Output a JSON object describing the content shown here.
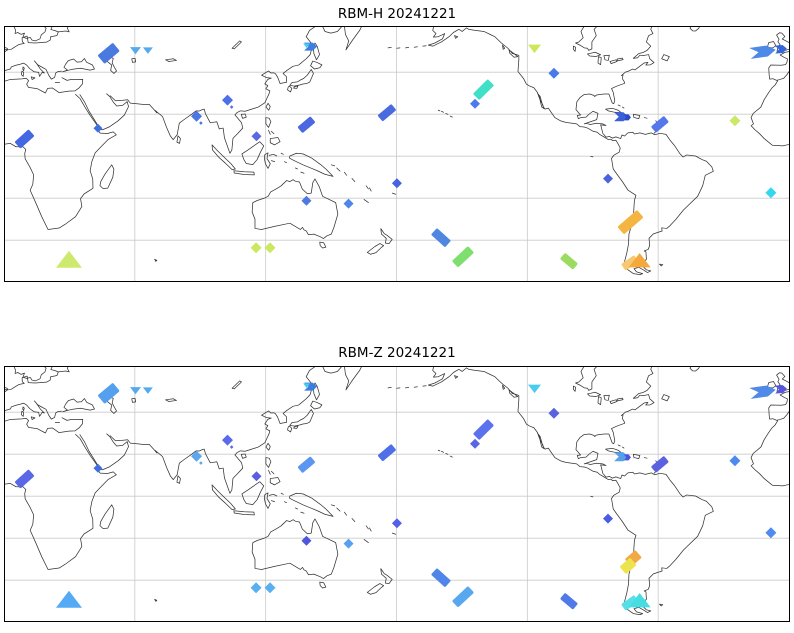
{
  "figure": {
    "background": "#ffffff",
    "frame_color": "#000000",
    "coastline_color": "#333333",
    "gridline_color": "#c9c9c9"
  },
  "chart_data": {
    "type": "scatter",
    "subtype": "map-swath-observations",
    "projection": {
      "name": "equirectangular-pacific-centered",
      "lon_range": [
        0,
        360
      ],
      "lat_range": [
        -60,
        62
      ],
      "grid": {
        "on": true,
        "lon_step_deg": 60,
        "lat_step_deg": 20
      }
    },
    "panels": [
      {
        "title": "RBM-H 20241221",
        "markers": [
          {
            "lon": 48.0,
            "lat": 49.0,
            "shape": "swath",
            "len": 20,
            "wid": 11,
            "angle": -40,
            "color": "#4a7ae0"
          },
          {
            "lon": 60.3,
            "lat": 50.5,
            "shape": "tri_down",
            "size": 5.5,
            "color": "#55aaee"
          },
          {
            "lon": 66.0,
            "lat": 50.5,
            "shape": "tri_down",
            "size": 5,
            "color": "#55aaee"
          },
          {
            "lon": 43.1,
            "lat": 13.3,
            "shape": "diamond",
            "size": 4.5,
            "color": "#3f6fe0"
          },
          {
            "lon": 9.4,
            "lat": 8.2,
            "shape": "swath",
            "len": 19,
            "wid": 9,
            "angle": -42,
            "color": "#4468e2"
          },
          {
            "lon": 88.3,
            "lat": 19.0,
            "shape": "diamond",
            "size": 5.5,
            "color": "#4a76e8"
          },
          {
            "lon": 90.3,
            "lat": 15.8,
            "shape": "diamond",
            "size": 1.8,
            "color": "#4a76e8"
          },
          {
            "lon": 102.5,
            "lat": 26.7,
            "shape": "diamond",
            "size": 5.5,
            "color": "#4f6fe8"
          },
          {
            "lon": 104.4,
            "lat": 23.4,
            "shape": "diamond",
            "size": 1.8,
            "color": "#4f6fe8"
          },
          {
            "lon": 115.8,
            "lat": 9.5,
            "shape": "diamond",
            "size": 5,
            "color": "#5a6ae0"
          },
          {
            "lon": 140.6,
            "lat": 52.2,
            "shape": "arrow",
            "len": 13,
            "wid": 8,
            "angle": 0,
            "color": "#3d7de0"
          },
          {
            "lon": 138.8,
            "lat": 52.8,
            "shape": "tri_down",
            "size": 3.5,
            "color": "#44ccee"
          },
          {
            "lon": 138.7,
            "lat": 15.0,
            "shape": "swath",
            "len": 17,
            "wid": 8,
            "angle": -40,
            "color": "#4a68e0"
          },
          {
            "lon": 175.6,
            "lat": 20.7,
            "shape": "swath",
            "len": 18,
            "wid": 8,
            "angle": -40,
            "color": "#4a6ae0"
          },
          {
            "lon": 219.9,
            "lat": 31.7,
            "shape": "swath",
            "len": 21,
            "wid": 9,
            "angle": -45,
            "color": "#40dfc8"
          },
          {
            "lon": 216.0,
            "lat": 25.0,
            "shape": "diamond",
            "size": 5,
            "color": "#4d7ae8"
          },
          {
            "lon": 243.3,
            "lat": 51.4,
            "shape": "tri_down",
            "size": 6.5,
            "color": "#cbe858"
          },
          {
            "lon": 252.2,
            "lat": 39.5,
            "shape": "diamond",
            "size": 5.5,
            "color": "#4a7ae8"
          },
          {
            "lon": 283.0,
            "lat": 18.8,
            "shape": "arrow",
            "len": 14,
            "wid": 9,
            "angle": 0,
            "color": "#3a5fd8"
          },
          {
            "lon": 285.9,
            "lat": 18.5,
            "shape": "arrow",
            "len": 7,
            "wid": 6,
            "angle": 0,
            "color": "#2a48c8"
          },
          {
            "lon": 300.8,
            "lat": 15.2,
            "shape": "swath",
            "len": 17,
            "wid": 8,
            "angle": -40,
            "color": "#5577ee"
          },
          {
            "lon": 335.2,
            "lat": 16.9,
            "shape": "diamond",
            "size": 5.5,
            "color": "#cbe86a"
          },
          {
            "lon": 348.0,
            "lat": 49.8,
            "shape": "arrow",
            "len": 26,
            "wid": 11,
            "angle": -8,
            "color": "#4d8ae8"
          },
          {
            "lon": 356.3,
            "lat": 51.0,
            "shape": "arrow",
            "len": 12,
            "wid": 8,
            "angle": -5,
            "color": "#3366dd"
          },
          {
            "lon": 29.8,
            "lat": -50.0,
            "shape": "tri_up",
            "size": 13,
            "color": "#cde96e"
          },
          {
            "lon": 115.6,
            "lat": -43.6,
            "shape": "diamond",
            "size": 5.5,
            "color": "#cbe860"
          },
          {
            "lon": 122.0,
            "lat": -43.6,
            "shape": "diamond",
            "size": 5.5,
            "color": "#cbe860"
          },
          {
            "lon": 138.7,
            "lat": -21.2,
            "shape": "diamond",
            "size": 5,
            "color": "#4d7ae0"
          },
          {
            "lon": 158.0,
            "lat": -22.6,
            "shape": "diamond",
            "size": 5,
            "color": "#4d86e8"
          },
          {
            "lon": 180.2,
            "lat": -12.9,
            "shape": "diamond",
            "size": 5,
            "color": "#4763e0"
          },
          {
            "lon": 200.4,
            "lat": -38.8,
            "shape": "swath",
            "len": 19,
            "wid": 9,
            "angle": 42,
            "color": "#4f86e0"
          },
          {
            "lon": 210.5,
            "lat": -47.9,
            "shape": "swath",
            "len": 22,
            "wid": 9,
            "angle": -43,
            "color": "#7ede6e"
          },
          {
            "lon": 277.0,
            "lat": -10.7,
            "shape": "diamond",
            "size": 5,
            "color": "#4a63dd"
          },
          {
            "lon": 287.3,
            "lat": -31.4,
            "shape": "swath",
            "len": 26,
            "wid": 10,
            "angle": -41,
            "color": "#f5b542"
          },
          {
            "lon": 287.0,
            "lat": -50.8,
            "shape": "swath",
            "len": 16,
            "wid": 8,
            "angle": -35,
            "color": "#f8c870"
          },
          {
            "lon": 291.5,
            "lat": -50.3,
            "shape": "tri_up",
            "size": 11,
            "color": "#f5a93c"
          },
          {
            "lon": 259.1,
            "lat": -50.0,
            "shape": "swath",
            "len": 17,
            "wid": 8,
            "angle": 40,
            "color": "#9bdc60"
          },
          {
            "lon": 351.7,
            "lat": -17.4,
            "shape": "diamond",
            "size": 5.5,
            "color": "#33d8ee"
          }
        ]
      },
      {
        "title": "RBM-Z 20241221",
        "markers": [
          {
            "lon": 48.0,
            "lat": 49.0,
            "shape": "swath",
            "len": 20,
            "wid": 11,
            "angle": -40,
            "color": "#55a0ee"
          },
          {
            "lon": 60.3,
            "lat": 50.5,
            "shape": "tri_down",
            "size": 5.5,
            "color": "#55aaee"
          },
          {
            "lon": 66.0,
            "lat": 50.5,
            "shape": "tri_down",
            "size": 5,
            "color": "#55aaee"
          },
          {
            "lon": 43.1,
            "lat": 13.3,
            "shape": "diamond",
            "size": 4.5,
            "color": "#4070e0"
          },
          {
            "lon": 9.4,
            "lat": 8.2,
            "shape": "swath",
            "len": 19,
            "wid": 9,
            "angle": -42,
            "color": "#5a68e8"
          },
          {
            "lon": 88.3,
            "lat": 19.0,
            "shape": "diamond",
            "size": 5.5,
            "color": "#5ca6f0"
          },
          {
            "lon": 90.3,
            "lat": 15.8,
            "shape": "diamond",
            "size": 1.8,
            "color": "#5ca6f0"
          },
          {
            "lon": 102.5,
            "lat": 26.7,
            "shape": "diamond",
            "size": 5.5,
            "color": "#5a6ae8"
          },
          {
            "lon": 104.4,
            "lat": 23.4,
            "shape": "diamond",
            "size": 1.8,
            "color": "#5a6ae8"
          },
          {
            "lon": 115.8,
            "lat": 9.5,
            "shape": "diamond",
            "size": 5,
            "color": "#5a5fe0"
          },
          {
            "lon": 140.6,
            "lat": 52.2,
            "shape": "arrow",
            "len": 13,
            "wid": 8,
            "angle": 0,
            "color": "#3d7de0"
          },
          {
            "lon": 138.8,
            "lat": 52.8,
            "shape": "tri_down",
            "size": 3.5,
            "color": "#44ccee"
          },
          {
            "lon": 138.7,
            "lat": 15.0,
            "shape": "swath",
            "len": 17,
            "wid": 8,
            "angle": -40,
            "color": "#5b96f0"
          },
          {
            "lon": 175.6,
            "lat": 20.7,
            "shape": "swath",
            "len": 18,
            "wid": 8,
            "angle": -40,
            "color": "#4f6fe8"
          },
          {
            "lon": 219.9,
            "lat": 31.7,
            "shape": "swath",
            "len": 21,
            "wid": 9,
            "angle": -45,
            "color": "#5a72ee"
          },
          {
            "lon": 216.0,
            "lat": 25.0,
            "shape": "diamond",
            "size": 5,
            "color": "#5a66e8"
          },
          {
            "lon": 243.3,
            "lat": 51.4,
            "shape": "tri_down",
            "size": 6.5,
            "color": "#48ccf0"
          },
          {
            "lon": 252.2,
            "lat": 39.5,
            "shape": "diamond",
            "size": 5.5,
            "color": "#5a62dd"
          },
          {
            "lon": 283.0,
            "lat": 18.8,
            "shape": "arrow",
            "len": 14,
            "wid": 9,
            "angle": 0,
            "color": "#55a0e8"
          },
          {
            "lon": 285.9,
            "lat": 18.5,
            "shape": "arrow",
            "len": 7,
            "wid": 6,
            "angle": 0,
            "color": "#4a55d8"
          },
          {
            "lon": 300.8,
            "lat": 15.2,
            "shape": "swath",
            "len": 17,
            "wid": 8,
            "angle": -40,
            "color": "#5a62e0"
          },
          {
            "lon": 335.2,
            "lat": 16.9,
            "shape": "diamond",
            "size": 5.5,
            "color": "#4d8af0"
          },
          {
            "lon": 348.0,
            "lat": 49.8,
            "shape": "arrow",
            "len": 26,
            "wid": 11,
            "angle": -8,
            "color": "#4f8ae8"
          },
          {
            "lon": 356.3,
            "lat": 51.0,
            "shape": "arrow",
            "len": 12,
            "wid": 8,
            "angle": -5,
            "color": "#5555dd"
          },
          {
            "lon": 29.8,
            "lat": -50.0,
            "shape": "tri_up",
            "size": 13,
            "color": "#55aaf5"
          },
          {
            "lon": 115.6,
            "lat": -43.6,
            "shape": "diamond",
            "size": 5.5,
            "color": "#58b0f0"
          },
          {
            "lon": 122.0,
            "lat": -43.6,
            "shape": "diamond",
            "size": 5.5,
            "color": "#58b0f0"
          },
          {
            "lon": 138.7,
            "lat": -21.2,
            "shape": "diamond",
            "size": 5,
            "color": "#4f55dd"
          },
          {
            "lon": 158.0,
            "lat": -22.6,
            "shape": "diamond",
            "size": 5,
            "color": "#58a0f0"
          },
          {
            "lon": 180.2,
            "lat": -12.9,
            "shape": "diamond",
            "size": 5,
            "color": "#5560e8"
          },
          {
            "lon": 200.4,
            "lat": -38.8,
            "shape": "swath",
            "len": 19,
            "wid": 9,
            "angle": 42,
            "color": "#4f86e8"
          },
          {
            "lon": 210.5,
            "lat": -47.9,
            "shape": "swath",
            "len": 22,
            "wid": 9,
            "angle": -43,
            "color": "#58a8f0"
          },
          {
            "lon": 277.0,
            "lat": -10.7,
            "shape": "diamond",
            "size": 5,
            "color": "#4a5ce0"
          },
          {
            "lon": 288.6,
            "lat": -29.6,
            "shape": "swath",
            "len": 14,
            "wid": 10,
            "angle": -41,
            "color": "#f2a845"
          },
          {
            "lon": 286.2,
            "lat": -33.2,
            "shape": "swath",
            "len": 14,
            "wid": 10,
            "angle": -41,
            "color": "#ece44e"
          },
          {
            "lon": 287.0,
            "lat": -50.8,
            "shape": "swath",
            "len": 16,
            "wid": 8,
            "angle": -35,
            "color": "#55e0e8"
          },
          {
            "lon": 291.5,
            "lat": -50.3,
            "shape": "tri_up",
            "size": 11,
            "color": "#45dde2"
          },
          {
            "lon": 259.1,
            "lat": -50.0,
            "shape": "swath",
            "len": 17,
            "wid": 8,
            "angle": 40,
            "color": "#4f7ae8"
          },
          {
            "lon": 351.7,
            "lat": -17.4,
            "shape": "diamond",
            "size": 5.5,
            "color": "#4f8aee"
          }
        ]
      }
    ]
  }
}
